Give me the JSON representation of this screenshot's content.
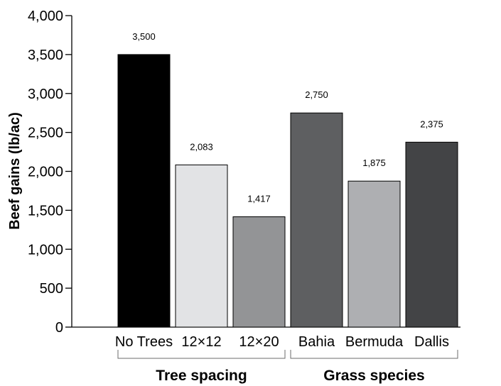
{
  "chart_data": {
    "type": "bar",
    "ylabel": "Beef gains (lb/ac)",
    "xlabel": "",
    "title": "",
    "ylim": [
      0,
      4000
    ],
    "yticks": [
      "0",
      "500",
      "1,000",
      "1,500",
      "2,000",
      "2,500",
      "3,000",
      "3,500",
      "4,000"
    ],
    "ytick_values": [
      0,
      500,
      1000,
      1500,
      2000,
      2500,
      3000,
      3500,
      4000
    ],
    "categories": [
      "No Trees",
      "12×12",
      "12×20",
      "Bahia",
      "Bermuda",
      "Dallis"
    ],
    "values": [
      3500,
      2083,
      1417,
      2750,
      1875,
      2375
    ],
    "value_labels": [
      "3,500",
      "2,083",
      "1,417",
      "2,750",
      "1,875",
      "2,375"
    ],
    "colors": [
      "#000000",
      "#e2e3e5",
      "#939496",
      "#5e5f61",
      "#aeafb2",
      "#434446"
    ],
    "groups": [
      {
        "label": "Tree spacing",
        "categories": [
          "No Trees",
          "12×12",
          "12×20"
        ]
      },
      {
        "label": "Grass species",
        "categories": [
          "Bahia",
          "Bermuda",
          "Dallis"
        ]
      }
    ],
    "grid": false,
    "legend": "none"
  }
}
